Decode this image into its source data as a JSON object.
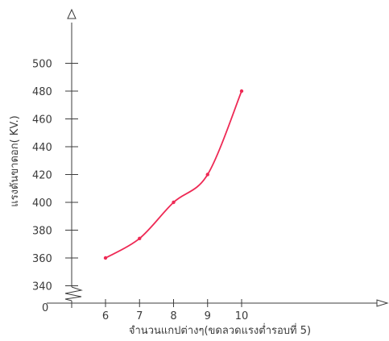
{
  "chart_data": {
    "type": "line",
    "title": "",
    "xlabel": "จำนวนแกปต่างๆ(ขดลวดแรงต่ำรอบที่ 5)",
    "ylabel": "แรงดันขาดอก( KV.)",
    "x": [
      6,
      7,
      8,
      9,
      10
    ],
    "series": [
      {
        "values": [
          360,
          374,
          400,
          420,
          480
        ],
        "color": "#ee2a55"
      }
    ],
    "x_ticks": [
      "6",
      "7",
      "8",
      "9",
      "10"
    ],
    "y_ticks": [
      "340",
      "360",
      "380",
      "400",
      "420",
      "440",
      "460",
      "480",
      "500"
    ],
    "y_origin_label": "0",
    "xlim": [
      5,
      15
    ],
    "ylim": [
      340,
      500
    ],
    "y_axis_break": true,
    "grid": false,
    "legend": "none",
    "smooth": true
  }
}
